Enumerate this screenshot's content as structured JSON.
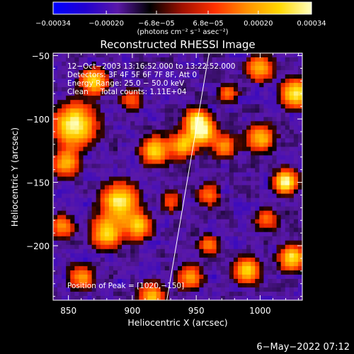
{
  "chart_data": {
    "type": "heatmap",
    "title": "Reconstructed RHESSI Image",
    "xlabel": "Heliocentric X (arcsec)",
    "ylabel": "Heliocentric Y (arcsec)",
    "xlim": [
      838,
      1033
    ],
    "ylim": [
      -243,
      -48
    ],
    "x_ticks": [
      {
        "value": 850,
        "label": "850"
      },
      {
        "value": 900,
        "label": "900"
      },
      {
        "value": 950,
        "label": "950"
      },
      {
        "value": 1000,
        "label": "1000"
      }
    ],
    "y_ticks": [
      {
        "value": -50,
        "label": "−50"
      },
      {
        "value": -100,
        "label": "−100"
      },
      {
        "value": -150,
        "label": "−150"
      },
      {
        "value": -200,
        "label": "−200"
      }
    ],
    "colorbar": {
      "range": [
        -0.00034,
        0.00034
      ],
      "ticks": [
        {
          "value": -0.00034,
          "label": "−0.00034"
        },
        {
          "value": -0.0002,
          "label": "−0.00020"
        },
        {
          "value": -6.8e-05,
          "label": "−6.8e−05"
        },
        {
          "value": 6.8e-05,
          "label": "6.8e−05"
        },
        {
          "value": 0.0002,
          "label": "0.00020"
        },
        {
          "value": 0.00034,
          "label": "0.00034"
        }
      ],
      "unit_label": "(photons cm⁻² s⁻¹ asec⁻²)",
      "colormap": [
        "#0000ff",
        "#2200d0",
        "#5a18a8",
        "#000000",
        "#a01000",
        "#ff3000",
        "#ff9000",
        "#ffd800",
        "#ffffc0"
      ]
    },
    "annotations": [
      "12−Oct−2003 13:16:52.000 to 13:22:52.000",
      "Detectors: 3F 4F 5F 6F 7F 8F, Att 0",
      "Energy Range: 25.0 − 50.0 keV",
      "Clean     Total counts: 1.11E+04"
    ],
    "peak_label": "Position of Peak = [1020,−150]",
    "peak_position": [
      1020,
      -150
    ],
    "limb_line": [
      [
        927,
        -243
      ],
      [
        960,
        -48
      ]
    ],
    "grid": false
  },
  "footer": {
    "date": "6−May−2022 07:12"
  }
}
